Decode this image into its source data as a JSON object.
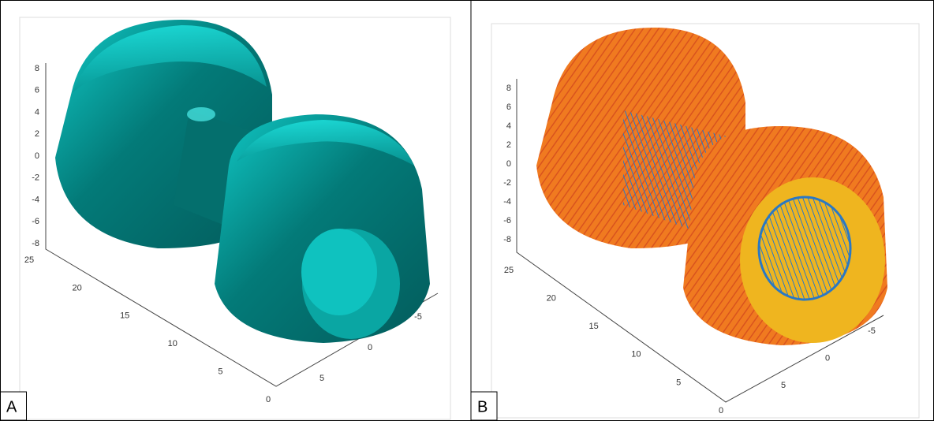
{
  "panels": [
    {
      "label": "A",
      "z_ticks": [
        8,
        6,
        4,
        2,
        0,
        -2,
        -4,
        -6,
        -8
      ],
      "depth_ticks": [
        25,
        20,
        15,
        10,
        5,
        0
      ],
      "x_ticks": [
        -5,
        0,
        5
      ]
    },
    {
      "label": "B",
      "z_ticks": [
        8,
        6,
        4,
        2,
        0,
        -2,
        -4,
        -6,
        -8
      ],
      "depth_ticks": [
        25,
        20,
        15,
        10,
        5,
        0
      ],
      "x_ticks": [
        -5,
        0,
        5
      ]
    }
  ]
}
